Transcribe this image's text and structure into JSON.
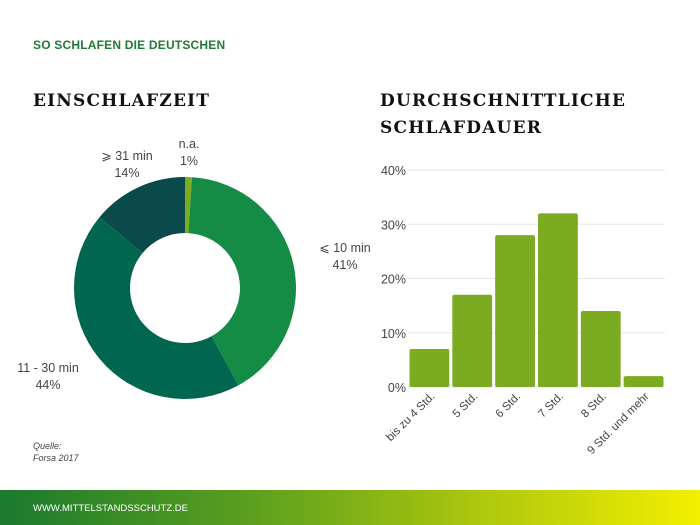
{
  "header": {
    "kicker": "SO SCHLAFEN DIE DEUTSCHEN"
  },
  "source": {
    "line1": "Quelle:",
    "line2": "Forsa 2017"
  },
  "footer": {
    "url": "WWW.MITTELSTANDSSCHUTZ.DE"
  },
  "colors": {
    "accent": "#1f7a35",
    "bar": "#7aab21"
  },
  "chart_data": [
    {
      "type": "pie",
      "title": "EINSCHLAFZEIT",
      "donut": true,
      "slices": [
        {
          "label": "n.a.",
          "value": 1,
          "value_label": "1%",
          "color": "#7aab21"
        },
        {
          "label": "⩽ 10 min",
          "value": 41,
          "value_label": "41%",
          "color": "#158c45"
        },
        {
          "label": "11 - 30 min",
          "value": 44,
          "value_label": "44%",
          "color": "#006650"
        },
        {
          "label": "⩾ 31 min",
          "value": 14,
          "value_label": "14%",
          "color": "#0a4a4a"
        }
      ]
    },
    {
      "type": "bar",
      "title_lines": [
        "DURCHSCHNITTLICHE",
        "SCHLAFDAUER"
      ],
      "categories": [
        "bis zu 4 Std.",
        "5 Std.",
        "6 Std.",
        "7 Std.",
        "8 Std.",
        "9 Std. und mehr"
      ],
      "values": [
        7,
        17,
        28,
        32,
        14,
        2
      ],
      "ylim": [
        0,
        40
      ],
      "yticks": [
        0,
        10,
        20,
        30,
        40
      ],
      "ytick_labels": [
        "0%",
        "10%",
        "20%",
        "30%",
        "40%"
      ],
      "grid": true
    }
  ]
}
